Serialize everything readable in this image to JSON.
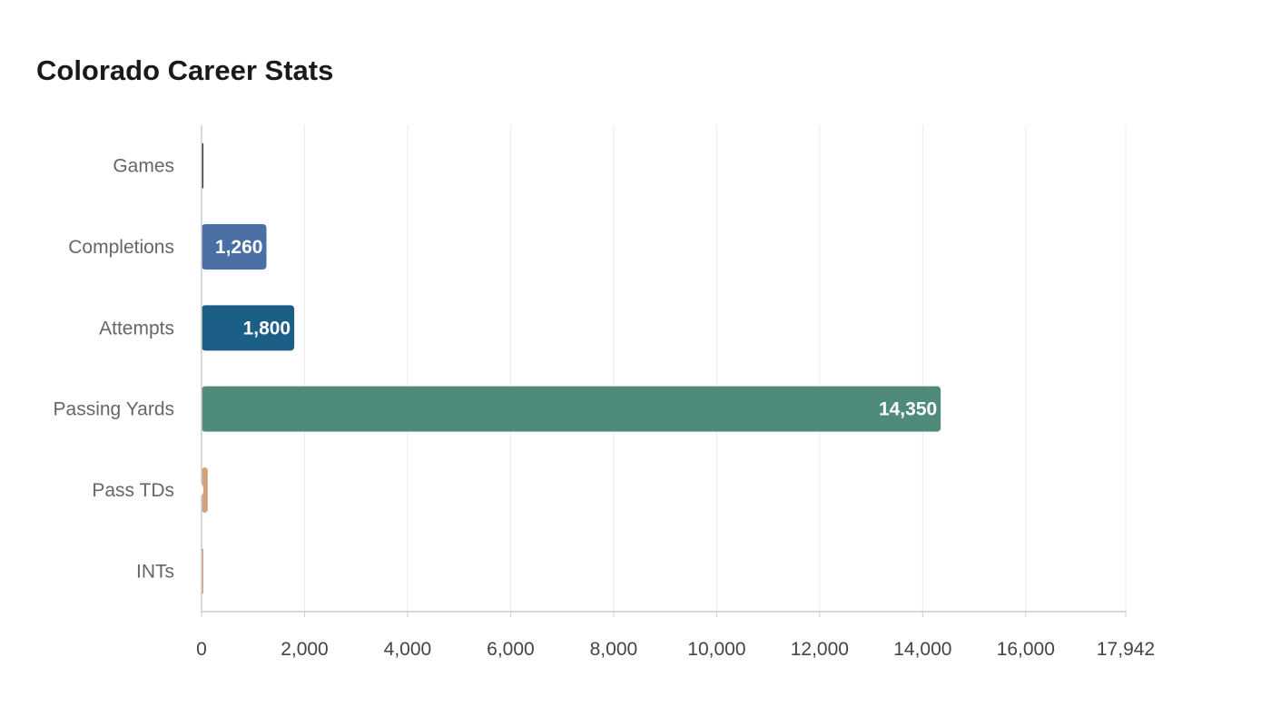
{
  "chart_data": {
    "type": "bar",
    "orientation": "horizontal",
    "title": "Colorado Career Stats",
    "xlabel": "",
    "ylabel": "",
    "categories": [
      "Games",
      "Completions",
      "Attempts",
      "Passing Yards",
      "Pass TDs",
      "INTs"
    ],
    "values": [
      36,
      1260,
      1800,
      14350,
      120,
      30
    ],
    "colors": [
      "#2e2e2e",
      "#4a6fa5",
      "#1b5e86",
      "#4f8b7a",
      "#d4a27a",
      "#d4a27a"
    ],
    "xlim": [
      0,
      17942
    ],
    "x_ticks": [
      "0",
      "2,000",
      "4,000",
      "6,000",
      "8,000",
      "10,000",
      "12,000",
      "14,000",
      "16,000",
      "17,942"
    ],
    "x_tick_values": [
      0,
      2000,
      4000,
      6000,
      8000,
      10000,
      12000,
      14000,
      16000,
      17942
    ],
    "grid": true,
    "legend": "none"
  }
}
